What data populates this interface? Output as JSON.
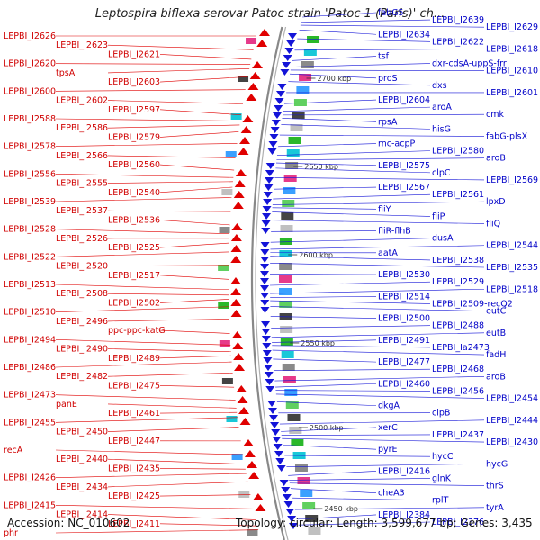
{
  "title": "Leptospira biflexa serovar Patoc strain 'Patoc 1 (Paris)' ch...",
  "footer": {
    "accession": "Accession: NC_010602",
    "topology": "Topology: circular; Length: 3,599,677 bp; Genes: 3,435"
  },
  "colors": {
    "forward": "#e00000",
    "reverse": "#1414d8",
    "backbone": "#888888"
  },
  "ticks": [
    "2700 kbp",
    "2650 kbp",
    "2600 kbp",
    "2550 kbp",
    "2500 kbp",
    "2450 kbp"
  ],
  "left_labels": [
    "LEPBI_I2626",
    "LEPBI_I2623",
    "LEPBI_I2621",
    "LEPBI_I2620",
    "tpsA",
    "LEPBI_I2603",
    "LEPBI_I2600",
    "LEPBI_I2602",
    "LEPBI_I2597",
    "LEPBI_I2588",
    "LEPBI_I2586",
    "LEPBI_I2579",
    "LEPBI_I2578",
    "LEPBI_I2566",
    "LEPBI_I2560",
    "LEPBI_I2556",
    "LEPBI_I2555",
    "LEPBI_I2540",
    "LEPBI_I2539",
    "LEPBI_I2537",
    "LEPBI_I2536",
    "LEPBI_I2528",
    "LEPBI_I2526",
    "LEPBI_I2525",
    "LEPBI_I2522",
    "LEPBI_I2520",
    "LEPBI_I2517",
    "LEPBI_I2513",
    "LEPBI_I2508",
    "LEPBI_I2502",
    "LEPBI_I2510",
    "LEPBI_I2496",
    "ppc-ppc-katG",
    "LEPBI_I2494",
    "LEPBI_I2490",
    "LEPBI_I2489",
    "LEPBI_I2486",
    "LEPBI_I2482",
    "LEPBI_I2475",
    "LEPBI_I2473",
    "panE",
    "LEPBI_I2461",
    "LEPBI_I2455",
    "LEPBI_I2450",
    "LEPBI_I2447",
    "recA",
    "LEPBI_I2440",
    "LEPBI_I2435",
    "LEPBI_I2426",
    "LEPBI_I2434",
    "LEPBI_I2425",
    "LEPBI_I2415",
    "LEPBI_I2414",
    "LEPBI_I2411",
    "phr"
  ],
  "right_labels": [
    "fabG5",
    "LEPBI_I2639",
    "LEPBI_I2629",
    "LEPBI_I2634",
    "LEPBI_I2622",
    "LEPBI_I2618",
    "tsf",
    "dxr-cdsA-uppS-frr",
    "LEPBI_I2610",
    "proS",
    "dxs",
    "LEPBI_I2601",
    "LEPBI_I2604",
    "aroA",
    "cmk",
    "rpsA",
    "hisG",
    "fabG-plsX",
    "rnc-acpP",
    "LEPBI_I2580",
    "aroB",
    "LEPBI_I2575",
    "clpC",
    "LEPBI_I2569",
    "LEPBI_I2567",
    "LEPBI_I2561",
    "lpxD",
    "fliY",
    "fliP",
    "fliQ",
    "fliR-flhB",
    "dusA",
    "LEPBI_I2544",
    "aatA",
    "LEPBI_I2538",
    "LEPBI_I2535",
    "LEPBI_I2530",
    "LEPBI_I2529",
    "LEPBI_I2518",
    "LEPBI_I2514",
    "LEPBI_I2509-recQ2",
    "eutC",
    "LEPBI_I2500",
    "LEPBI_I2488",
    "eutB",
    "LEPBI_I2491",
    "LEPBI_Ia2473",
    "fadH",
    "LEPBI_I2477",
    "LEPBI_I2468",
    "aroB",
    "LEPBI_I2460",
    "LEPBI_I2456",
    "LEPBI_I2454",
    "dkgA",
    "clpB",
    "LEPBI_I2444",
    "xerC",
    "LEPBI_I2437",
    "LEPBI_I2430",
    "pyrE",
    "hycC",
    "hycG",
    "LEPBI_I2416",
    "glnK",
    "thrS",
    "cheA3",
    "rplT",
    "tyrA",
    "LEPBI_I2384",
    "LEPBI_I2376"
  ]
}
